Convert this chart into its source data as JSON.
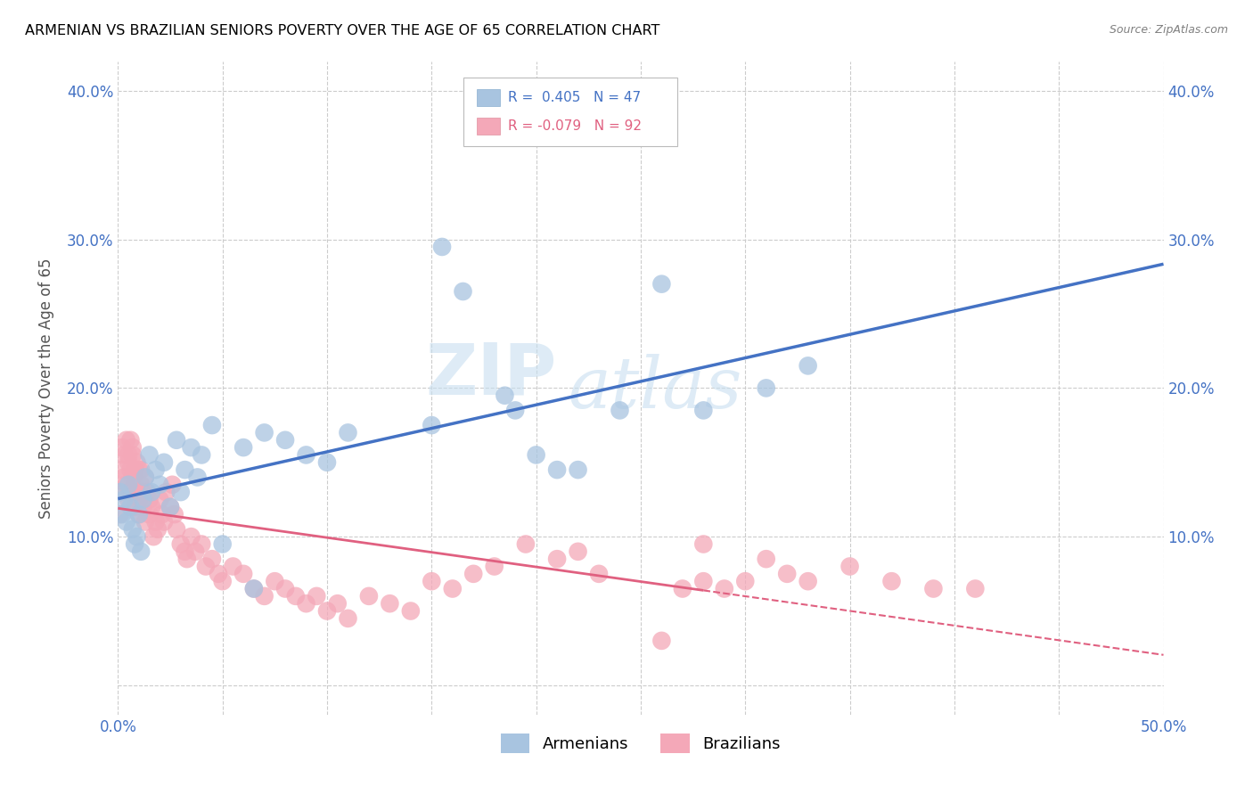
{
  "title": "ARMENIAN VS BRAZILIAN SENIORS POVERTY OVER THE AGE OF 65 CORRELATION CHART",
  "source": "Source: ZipAtlas.com",
  "ylabel": "Seniors Poverty Over the Age of 65",
  "xlim": [
    0.0,
    0.5
  ],
  "ylim": [
    -0.02,
    0.42
  ],
  "yticks": [
    0.0,
    0.1,
    0.2,
    0.3,
    0.4
  ],
  "xticks_labeled": [
    0.0,
    0.5
  ],
  "xtick_labels": [
    "0.0%",
    "50.0%"
  ],
  "ytick_labels": [
    "",
    "10.0%",
    "20.0%",
    "30.0%",
    "40.0%"
  ],
  "r_armenian": 0.405,
  "n_armenian": 47,
  "r_brazilian": -0.079,
  "n_brazilian": 92,
  "color_armenian": "#a8c4e0",
  "color_brazilian": "#f4a8b8",
  "line_color_armenian": "#4472c4",
  "line_color_brazilian": "#e06080",
  "watermark_zip": "ZIP",
  "watermark_atlas": "atlas",
  "legend_armenian": "Armenians",
  "legend_brazilian": "Brazilians",
  "armenian_x": [
    0.001,
    0.002,
    0.003,
    0.004,
    0.005,
    0.006,
    0.007,
    0.008,
    0.009,
    0.01,
    0.011,
    0.012,
    0.013,
    0.015,
    0.016,
    0.018,
    0.02,
    0.022,
    0.025,
    0.028,
    0.03,
    0.032,
    0.035,
    0.038,
    0.04,
    0.045,
    0.05,
    0.06,
    0.065,
    0.07,
    0.08,
    0.09,
    0.1,
    0.11,
    0.15,
    0.155,
    0.165,
    0.185,
    0.19,
    0.2,
    0.21,
    0.22,
    0.24,
    0.26,
    0.28,
    0.31,
    0.33
  ],
  "armenian_y": [
    0.13,
    0.115,
    0.125,
    0.11,
    0.135,
    0.12,
    0.105,
    0.095,
    0.1,
    0.115,
    0.09,
    0.125,
    0.14,
    0.155,
    0.13,
    0.145,
    0.135,
    0.15,
    0.12,
    0.165,
    0.13,
    0.145,
    0.16,
    0.14,
    0.155,
    0.175,
    0.095,
    0.16,
    0.065,
    0.17,
    0.165,
    0.155,
    0.15,
    0.17,
    0.175,
    0.295,
    0.265,
    0.195,
    0.185,
    0.155,
    0.145,
    0.145,
    0.185,
    0.27,
    0.185,
    0.2,
    0.215
  ],
  "brazilian_x": [
    0.001,
    0.001,
    0.002,
    0.002,
    0.003,
    0.003,
    0.004,
    0.004,
    0.005,
    0.005,
    0.005,
    0.006,
    0.006,
    0.006,
    0.007,
    0.007,
    0.007,
    0.008,
    0.008,
    0.008,
    0.009,
    0.009,
    0.01,
    0.01,
    0.01,
    0.011,
    0.011,
    0.012,
    0.012,
    0.013,
    0.013,
    0.014,
    0.015,
    0.015,
    0.016,
    0.017,
    0.018,
    0.019,
    0.02,
    0.021,
    0.022,
    0.023,
    0.025,
    0.026,
    0.027,
    0.028,
    0.03,
    0.032,
    0.033,
    0.035,
    0.037,
    0.04,
    0.042,
    0.045,
    0.048,
    0.05,
    0.055,
    0.06,
    0.065,
    0.07,
    0.075,
    0.08,
    0.085,
    0.09,
    0.095,
    0.1,
    0.105,
    0.11,
    0.12,
    0.13,
    0.14,
    0.15,
    0.16,
    0.17,
    0.18,
    0.195,
    0.21,
    0.22,
    0.23,
    0.26,
    0.27,
    0.28,
    0.29,
    0.3,
    0.32,
    0.33,
    0.35,
    0.37,
    0.39,
    0.41,
    0.28,
    0.31
  ],
  "brazilian_y": [
    0.13,
    0.115,
    0.145,
    0.16,
    0.155,
    0.14,
    0.165,
    0.135,
    0.15,
    0.125,
    0.155,
    0.145,
    0.165,
    0.13,
    0.14,
    0.155,
    0.16,
    0.145,
    0.135,
    0.12,
    0.15,
    0.13,
    0.145,
    0.125,
    0.115,
    0.135,
    0.145,
    0.13,
    0.12,
    0.14,
    0.11,
    0.13,
    0.125,
    0.115,
    0.12,
    0.1,
    0.11,
    0.105,
    0.125,
    0.115,
    0.11,
    0.13,
    0.12,
    0.135,
    0.115,
    0.105,
    0.095,
    0.09,
    0.085,
    0.1,
    0.09,
    0.095,
    0.08,
    0.085,
    0.075,
    0.07,
    0.08,
    0.075,
    0.065,
    0.06,
    0.07,
    0.065,
    0.06,
    0.055,
    0.06,
    0.05,
    0.055,
    0.045,
    0.06,
    0.055,
    0.05,
    0.07,
    0.065,
    0.075,
    0.08,
    0.095,
    0.085,
    0.09,
    0.075,
    0.03,
    0.065,
    0.07,
    0.065,
    0.07,
    0.075,
    0.07,
    0.08,
    0.07,
    0.065,
    0.065,
    0.095,
    0.085
  ],
  "grid_xticks": [
    0.0,
    0.05,
    0.1,
    0.15,
    0.2,
    0.25,
    0.3,
    0.35,
    0.4,
    0.45,
    0.5
  ]
}
